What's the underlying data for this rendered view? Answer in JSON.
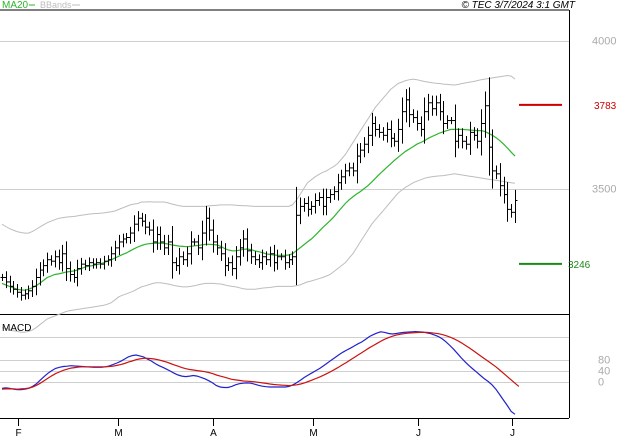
{
  "header": {
    "legend": [
      {
        "label": "MA20",
        "color": "#2db52d"
      },
      {
        "label": "BBands",
        "color": "#bdbdbd"
      }
    ],
    "copyright": "© TEC 3/7/2024 3:1 GMT"
  },
  "colors": {
    "candles": "#000000",
    "ma20": "#2db52d",
    "bbands": "#bdbdbd",
    "resistance": "#cc0000",
    "support": "#1a8a1a",
    "macd_line": "#2222cc",
    "signal_line": "#cc1111",
    "grid": "#cfcfcf"
  },
  "chart_data": [
    {
      "type": "candlestick",
      "title": "",
      "y_ticks": [
        "4000",
        "3500"
      ],
      "ylim": [
        3080,
        4100
      ],
      "x_ticks": [
        "F",
        "M",
        "A",
        "M",
        "J",
        "J"
      ],
      "levels": [
        {
          "name": "resistance",
          "label": "3783",
          "value": 3783
        },
        {
          "name": "support",
          "label": "3246",
          "value": 3246
        }
      ],
      "close": [
        3200,
        3185,
        3170,
        3160,
        3150,
        3140,
        3145,
        3155,
        3170,
        3200,
        3225,
        3240,
        3260,
        3255,
        3270,
        3250,
        3280,
        3230,
        3210,
        3200,
        3230,
        3245,
        3240,
        3250,
        3245,
        3250,
        3245,
        3255,
        3260,
        3280,
        3300,
        3320,
        3330,
        3335,
        3350,
        3380,
        3400,
        3390,
        3370,
        3360,
        3320,
        3345,
        3320,
        3300,
        3320,
        3250,
        3240,
        3270,
        3260,
        3280,
        3320,
        3320,
        3300,
        3350,
        3400,
        3360,
        3320,
        3300,
        3280,
        3240,
        3250,
        3230,
        3270,
        3300,
        3330,
        3290,
        3270,
        3260,
        3250,
        3270,
        3260,
        3280,
        3250,
        3270,
        3270,
        3250,
        3260,
        3270,
        3410,
        3440,
        3450,
        3430,
        3440,
        3460,
        3470,
        3440,
        3470,
        3480,
        3490,
        3520,
        3540,
        3560,
        3570,
        3560,
        3610,
        3630,
        3650,
        3680,
        3720,
        3700,
        3690,
        3680,
        3700,
        3670,
        3660,
        3700,
        3760,
        3800,
        3750,
        3740,
        3720,
        3700,
        3760,
        3790,
        3770,
        3790,
        3760,
        3720,
        3730,
        3730,
        3660,
        3680,
        3660,
        3650,
        3690,
        3680,
        3660,
        3720,
        3780,
        3640,
        3560,
        3550,
        3510,
        3480,
        3430,
        3420,
        3460
      ],
      "ma20": [
        3180,
        3175,
        3170,
        3165,
        3160,
        3158,
        3157,
        3160,
        3165,
        3172,
        3180,
        3190,
        3200,
        3205,
        3210,
        3212,
        3215,
        3218,
        3220,
        3222,
        3225,
        3230,
        3235,
        3238,
        3240,
        3243,
        3246,
        3250,
        3255,
        3260,
        3266,
        3272,
        3278,
        3283,
        3290,
        3297,
        3303,
        3308,
        3312,
        3314,
        3315,
        3316,
        3316,
        3315,
        3313,
        3310,
        3308,
        3306,
        3305,
        3304,
        3305,
        3307,
        3308,
        3310,
        3312,
        3312,
        3311,
        3310,
        3305,
        3298,
        3293,
        3290,
        3290,
        3292,
        3295,
        3296,
        3294,
        3290,
        3287,
        3284,
        3280,
        3278,
        3276,
        3275,
        3275,
        3275,
        3276,
        3280,
        3290,
        3300,
        3310,
        3320,
        3330,
        3342,
        3355,
        3368,
        3380,
        3392,
        3405,
        3420,
        3435,
        3450,
        3462,
        3472,
        3482,
        3490,
        3500,
        3510,
        3522,
        3535,
        3548,
        3560,
        3572,
        3583,
        3595,
        3606,
        3616,
        3626,
        3634,
        3642,
        3650,
        3656,
        3662,
        3670,
        3676,
        3682,
        3688,
        3692,
        3696,
        3700,
        3700,
        3700,
        3700,
        3699,
        3698,
        3697,
        3696,
        3696,
        3693,
        3687,
        3680,
        3672,
        3662,
        3650,
        3637,
        3623,
        3610
      ],
      "bb_upper": [
        3380,
        3372,
        3365,
        3360,
        3355,
        3352,
        3350,
        3350,
        3355,
        3362,
        3370,
        3378,
        3385,
        3390,
        3395,
        3400,
        3402,
        3404,
        3405,
        3406,
        3408,
        3410,
        3412,
        3414,
        3415,
        3416,
        3417,
        3418,
        3420,
        3422,
        3425,
        3430,
        3435,
        3440,
        3445,
        3448,
        3450,
        3455,
        3455,
        3456,
        3455,
        3455,
        3455,
        3455,
        3452,
        3448,
        3445,
        3442,
        3440,
        3440,
        3440,
        3440,
        3440,
        3440,
        3440,
        3442,
        3443,
        3444,
        3445,
        3445,
        3445,
        3445,
        3444,
        3443,
        3442,
        3442,
        3441,
        3440,
        3440,
        3440,
        3440,
        3440,
        3440,
        3440,
        3440,
        3440,
        3440,
        3445,
        3460,
        3480,
        3500,
        3520,
        3530,
        3540,
        3548,
        3555,
        3560,
        3568,
        3575,
        3585,
        3600,
        3615,
        3635,
        3655,
        3675,
        3695,
        3715,
        3735,
        3755,
        3775,
        3790,
        3805,
        3820,
        3835,
        3845,
        3855,
        3860,
        3865,
        3868,
        3870,
        3868,
        3865,
        3862,
        3860,
        3858,
        3856,
        3855,
        3853,
        3852,
        3851,
        3850,
        3852,
        3855,
        3858,
        3860,
        3862,
        3865,
        3868,
        3870,
        3872,
        3874,
        3876,
        3878,
        3880,
        3882,
        3880,
        3870
      ],
      "bb_lower": [
        3030,
        3028,
        3025,
        3020,
        3018,
        3015,
        3015,
        3018,
        3022,
        3030,
        3040,
        3050,
        3060,
        3065,
        3070,
        3075,
        3080,
        3085,
        3088,
        3090,
        3092,
        3094,
        3096,
        3098,
        3100,
        3102,
        3104,
        3106,
        3110,
        3115,
        3125,
        3135,
        3140,
        3145,
        3150,
        3155,
        3162,
        3168,
        3172,
        3176,
        3180,
        3182,
        3182,
        3180,
        3178,
        3175,
        3172,
        3170,
        3168,
        3168,
        3170,
        3172,
        3175,
        3178,
        3180,
        3180,
        3180,
        3179,
        3178,
        3175,
        3172,
        3170,
        3168,
        3165,
        3162,
        3160,
        3160,
        3160,
        3162,
        3164,
        3165,
        3166,
        3168,
        3170,
        3170,
        3170,
        3170,
        3170,
        3172,
        3175,
        3180,
        3185,
        3188,
        3192,
        3196,
        3200,
        3205,
        3210,
        3220,
        3230,
        3240,
        3250,
        3265,
        3280,
        3300,
        3320,
        3340,
        3360,
        3380,
        3395,
        3410,
        3425,
        3440,
        3455,
        3470,
        3485,
        3495,
        3505,
        3512,
        3520,
        3525,
        3530,
        3535,
        3538,
        3540,
        3542,
        3543,
        3544,
        3546,
        3548,
        3550,
        3548,
        3546,
        3544,
        3542,
        3540,
        3538,
        3536,
        3534,
        3532,
        3530,
        3528,
        3526,
        3524,
        3522,
        3520,
        3518
      ]
    },
    {
      "type": "line",
      "title": "MACD",
      "y_ticks": [
        "80",
        "40",
        "0"
      ],
      "ylim": [
        -130,
        240
      ],
      "series": [
        {
          "name": "",
          "values": [
            -25,
            -23,
            -25,
            -28,
            -30,
            -30,
            -28,
            -25,
            -18,
            -8,
            5,
            18,
            30,
            40,
            48,
            52,
            55,
            56,
            58,
            57,
            56,
            55,
            54,
            53,
            52,
            52,
            52,
            54,
            57,
            62,
            68,
            74,
            82,
            90,
            95,
            97,
            94,
            90,
            82,
            75,
            66,
            58,
            52,
            45,
            38,
            30,
            24,
            20,
            18,
            20,
            22,
            20,
            15,
            10,
            3,
            -5,
            -15,
            -20,
            -22,
            -22,
            -18,
            -12,
            -8,
            -6,
            -5,
            -6,
            -10,
            -14,
            -17,
            -19,
            -20,
            -20,
            -20,
            -20,
            -20,
            -18,
            -12,
            -4,
            5,
            15,
            24,
            32,
            40,
            48,
            58,
            68,
            78,
            88,
            98,
            107,
            115,
            122,
            130,
            138,
            145,
            155,
            165,
            172,
            178,
            182,
            180,
            176,
            174,
            176,
            178,
            180,
            181,
            182,
            183,
            182,
            181,
            178,
            175,
            170,
            165,
            156,
            145,
            132,
            118,
            102,
            86,
            72,
            58,
            46,
            34,
            22,
            10,
            0,
            -12,
            -28,
            -48,
            -68,
            -88,
            -110,
            -120
          ]
        },
        {
          "name": "",
          "values": [
            -28,
            -27,
            -27,
            -27,
            -28,
            -27,
            -26,
            -24,
            -20,
            -14,
            -6,
            3,
            12,
            21,
            29,
            35,
            41,
            45,
            49,
            51,
            53,
            54,
            54,
            54,
            54,
            54,
            54,
            54,
            55,
            56,
            59,
            62,
            66,
            71,
            75,
            80,
            83,
            85,
            85,
            84,
            82,
            79,
            75,
            71,
            66,
            61,
            56,
            51,
            47,
            44,
            42,
            40,
            38,
            36,
            33,
            29,
            24,
            20,
            16,
            12,
            8,
            6,
            4,
            2,
            1,
            0,
            -1,
            -3,
            -5,
            -7,
            -9,
            -11,
            -12,
            -13,
            -14,
            -15,
            -14,
            -12,
            -9,
            -5,
            0,
            5,
            11,
            17,
            23,
            30,
            37,
            45,
            53,
            62,
            70,
            79,
            88,
            97,
            106,
            115,
            124,
            132,
            140,
            148,
            155,
            161,
            166,
            170,
            173,
            175,
            177,
            178,
            179,
            180,
            180,
            180,
            179,
            177,
            175,
            172,
            168,
            163,
            157,
            150,
            142,
            133,
            124,
            114,
            104,
            94,
            84,
            74,
            64,
            54,
            42,
            30,
            18,
            6,
            -6,
            -18
          ]
        }
      ]
    }
  ]
}
